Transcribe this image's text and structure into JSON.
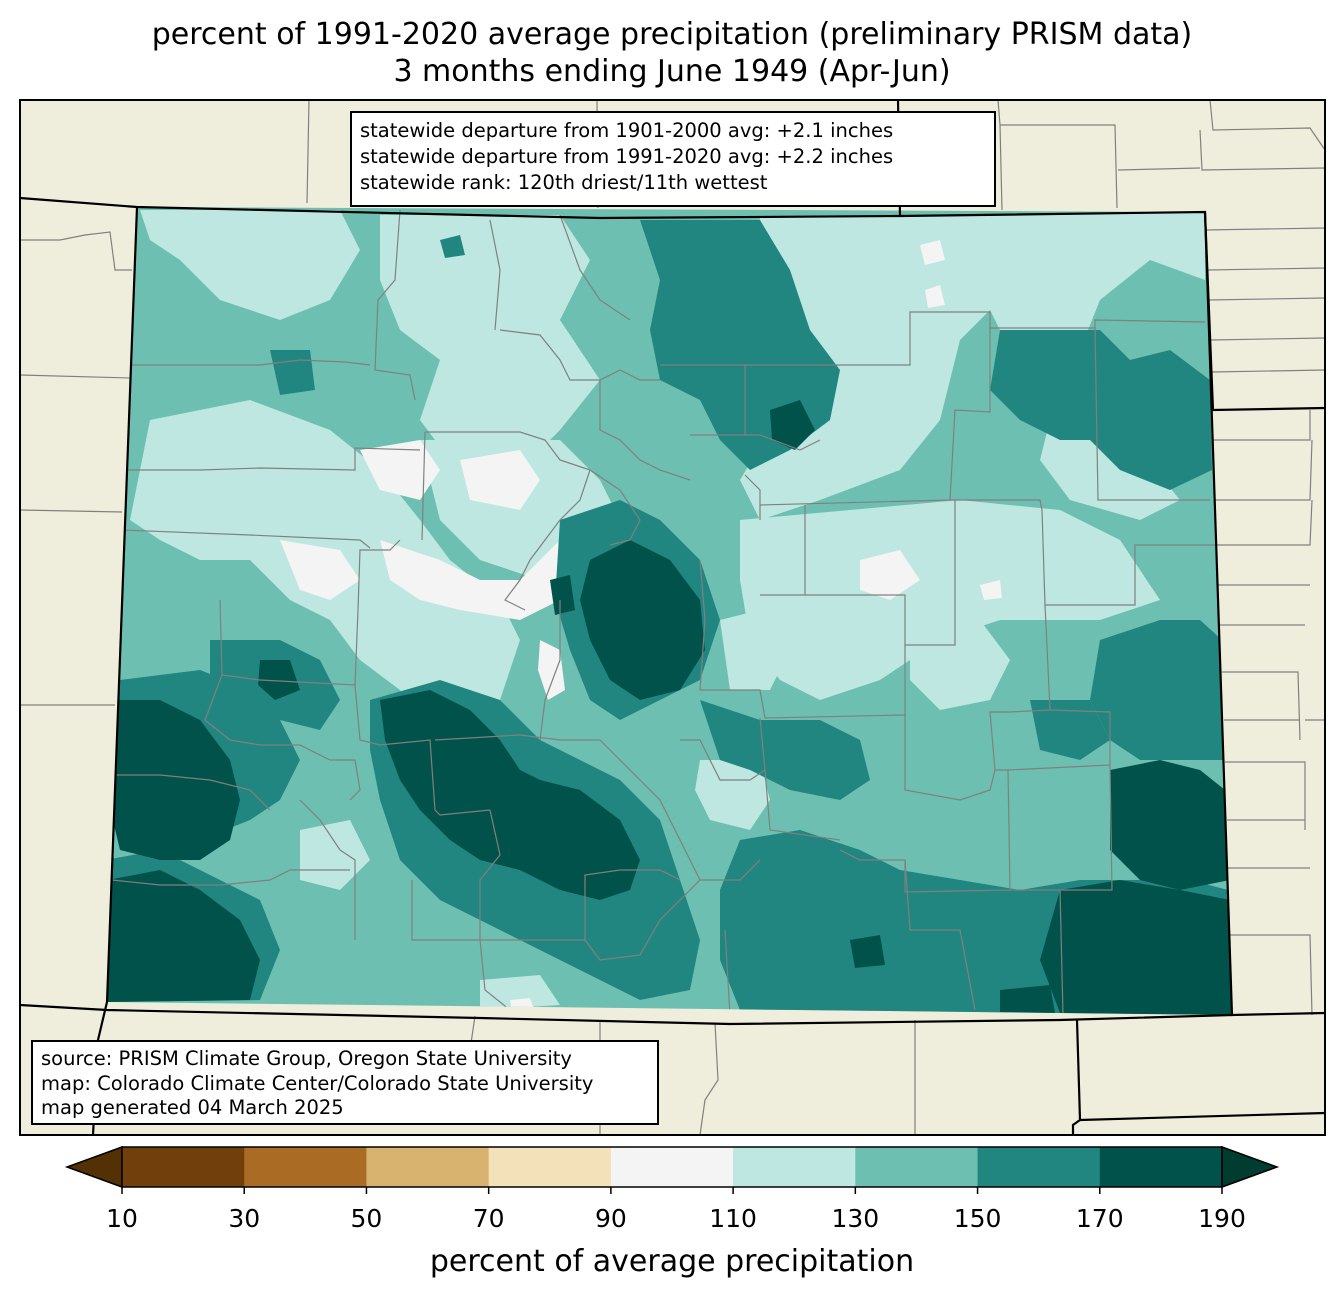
{
  "title_line1": "percent of 1991-2020 average precipitation (preliminary PRISM data)",
  "title_line2": "3 months ending June 1949 (Apr-Jun)",
  "stats": [
    "statewide departure from 1901-2000 avg: +2.1 inches",
    "statewide departure from 1991-2020 avg: +2.2 inches",
    "statewide rank: 120th driest/11th wettest"
  ],
  "source": [
    "source: PRISM Climate Group, Oregon State University",
    "map: Colorado Climate Center/Colorado State University",
    "map generated 04 March 2025"
  ],
  "colorbar": {
    "label": "percent of average precipitation",
    "ticks": [
      "10",
      "30",
      "50",
      "70",
      "90",
      "110",
      "130",
      "150",
      "170",
      "190"
    ],
    "under_color": "#543005",
    "over_color": "#003c30",
    "bins": [
      {
        "from": 10,
        "to": 30,
        "color": "#713f0c"
      },
      {
        "from": 30,
        "to": 50,
        "color": "#aa6b24"
      },
      {
        "from": 50,
        "to": 70,
        "color": "#d8b26f"
      },
      {
        "from": 70,
        "to": 90,
        "color": "#f3e2b9"
      },
      {
        "from": 90,
        "to": 110,
        "color": "#f3f4f3"
      },
      {
        "from": 110,
        "to": 130,
        "color": "#bde7e0"
      },
      {
        "from": 130,
        "to": 150,
        "color": "#6dbfb1"
      },
      {
        "from": 150,
        "to": 170,
        "color": "#218680"
      },
      {
        "from": 170,
        "to": 190,
        "color": "#01524a"
      }
    ]
  },
  "colors": {
    "land_background": "#efeedc",
    "county_line": "#808080",
    "state_line": "#000000"
  }
}
